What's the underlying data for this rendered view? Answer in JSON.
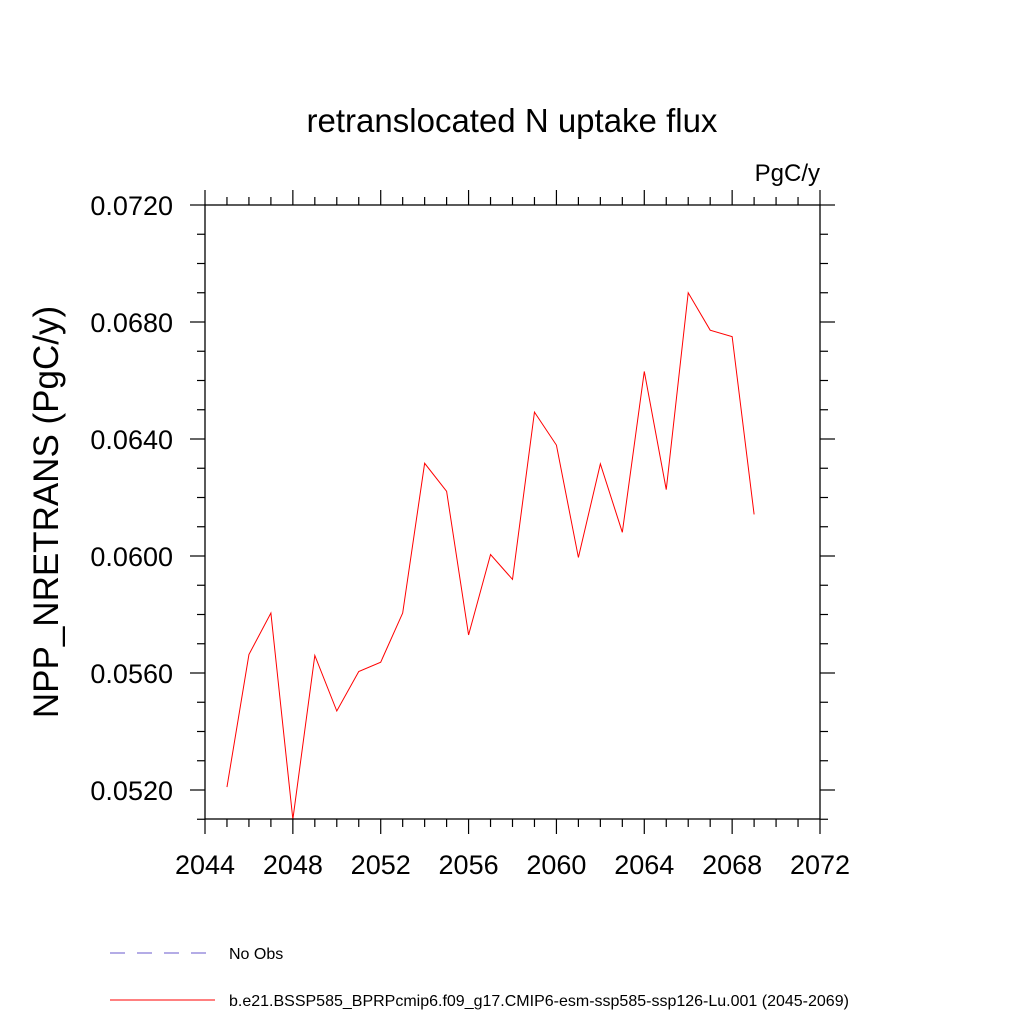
{
  "chart_data": {
    "type": "line",
    "title": "retranslocated N uptake flux",
    "units_label": "PgC/y",
    "ylabel": "NPP_NRETRANS  (PgC/y)",
    "xlabel": "",
    "xlim": [
      2044,
      2072
    ],
    "ylim": [
      0.051,
      0.0725
    ],
    "x_ticks": [
      2044,
      2048,
      2052,
      2056,
      2060,
      2064,
      2068,
      2072
    ],
    "x_tick_labels": [
      "2044",
      "2048",
      "2052",
      "2056",
      "2060",
      "2064",
      "2068",
      "2072"
    ],
    "y_ticks": [
      0.052,
      0.056,
      0.06,
      0.064,
      0.068,
      0.072
    ],
    "y_tick_labels": [
      "0.0520",
      "0.0560",
      "0.0600",
      "0.0640",
      "0.0680",
      "0.0720"
    ],
    "grid": false,
    "legend_placement": "bottom",
    "series": [
      {
        "name": "b.e21.BSSP585_BPRPcmip6.f09_g17.CMIP6-esm-ssp585-ssp126-Lu.001 (2045-2069)",
        "color": "#ff0000",
        "dash": "solid",
        "x": [
          2045,
          2046,
          2047,
          2048,
          2049,
          2050,
          2051,
          2052,
          2053,
          2054,
          2055,
          2056,
          2057,
          2058,
          2059,
          2060,
          2061,
          2062,
          2063,
          2064,
          2065,
          2066,
          2067,
          2068,
          2069
        ],
        "y": [
          0.0521,
          0.05663,
          0.05805,
          0.051,
          0.0566,
          0.0547,
          0.05605,
          0.05637,
          0.05805,
          0.06317,
          0.06221,
          0.0573,
          0.06005,
          0.0592,
          0.06492,
          0.06379,
          0.05995,
          0.06315,
          0.06081,
          0.06631,
          0.06227,
          0.069,
          0.06772,
          0.0675,
          0.06142
        ]
      }
    ],
    "legend": [
      {
        "label": "No Obs",
        "color": "#6a5acd",
        "dash": "dashed"
      },
      {
        "label": "b.e21.BSSP585_BPRPcmip6.f09_g17.CMIP6-esm-ssp585-ssp126-Lu.001 (2045-2069)",
        "color": "#ff0000",
        "dash": "solid"
      }
    ]
  }
}
